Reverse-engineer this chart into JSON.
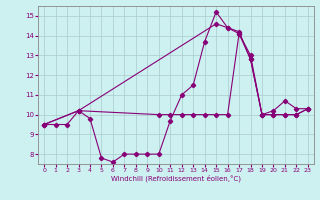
{
  "xlabel": "Windchill (Refroidissement éolien,°C)",
  "xlim": [
    -0.5,
    23.5
  ],
  "ylim": [
    7.5,
    15.5
  ],
  "xticks": [
    0,
    1,
    2,
    3,
    4,
    5,
    6,
    7,
    8,
    9,
    10,
    11,
    12,
    13,
    14,
    15,
    16,
    17,
    18,
    19,
    20,
    21,
    22,
    23
  ],
  "yticks": [
    8,
    9,
    10,
    11,
    12,
    13,
    14,
    15
  ],
  "bg_color": "#cdf0f0",
  "line_color": "#880077",
  "grid_color": "#aacccc",
  "line1_x": [
    0,
    1,
    2,
    3,
    4,
    5,
    6,
    7,
    8,
    9,
    10,
    11,
    12,
    13,
    14,
    15,
    16,
    17,
    18,
    19,
    20,
    21,
    22,
    23
  ],
  "line1_y": [
    9.5,
    9.5,
    9.5,
    10.2,
    9.8,
    7.8,
    7.6,
    8.0,
    8.0,
    8.0,
    8.0,
    9.7,
    11.0,
    11.5,
    13.7,
    15.2,
    14.4,
    14.2,
    12.8,
    10.0,
    10.2,
    10.7,
    10.3,
    10.3
  ],
  "line2_x": [
    0,
    3,
    15,
    16,
    17,
    18,
    19,
    20,
    21,
    22,
    23
  ],
  "line2_y": [
    9.5,
    10.2,
    14.6,
    14.4,
    14.1,
    13.0,
    10.0,
    10.0,
    10.0,
    10.0,
    10.3
  ],
  "line3_x": [
    0,
    3,
    10,
    11,
    12,
    13,
    14,
    15,
    16,
    17,
    18,
    19,
    20,
    21,
    22,
    23
  ],
  "line3_y": [
    9.5,
    10.2,
    10.0,
    10.0,
    10.0,
    10.0,
    10.0,
    10.0,
    10.0,
    14.1,
    12.8,
    10.0,
    10.0,
    10.0,
    10.0,
    10.3
  ]
}
